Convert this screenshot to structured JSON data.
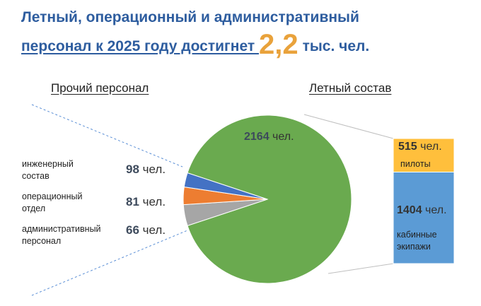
{
  "title": {
    "line1": "Летный, операционный и административный",
    "line2": "персонал к 2025 году достигнет ",
    "value": "2,2",
    "unit": "тыс. чел."
  },
  "labels": {
    "other_staff": "Прочий персонал",
    "flight_staff": "Летный состав"
  },
  "chart_data": {
    "type": "pie",
    "unit": "чел.",
    "slices": [
      {
        "name": "Летный состав",
        "value": 2164,
        "color": "#6aaa4f"
      },
      {
        "name": "инженерный состав",
        "value": 98,
        "color": "#a6a6a6"
      },
      {
        "name": "операционный отдел",
        "value": 81,
        "color": "#ed7d31"
      },
      {
        "name": "административный персонал",
        "value": 66,
        "color": "#4472c4"
      }
    ],
    "breakdown": [
      {
        "name": "пилоты",
        "value": 515,
        "color": "#ffbf3c"
      },
      {
        "name": "кабинные экипажи",
        "value": 1404,
        "color": "#5b9bd5"
      }
    ]
  },
  "legend": {
    "eng_line1": "инженерный",
    "eng_line2": "состав",
    "ops_line1": "операционный",
    "ops_line2": "отдел",
    "adm_line1": "административный",
    "adm_line2": "персонал",
    "pilots_line": "пилоты",
    "cabin_line1": "кабинные",
    "cabin_line2": "экипажи"
  },
  "values": {
    "flight": "2164",
    "eng": "98",
    "ops": "81",
    "adm": "66",
    "pilots": "515",
    "cabin": "1404",
    "unit": "чел."
  }
}
